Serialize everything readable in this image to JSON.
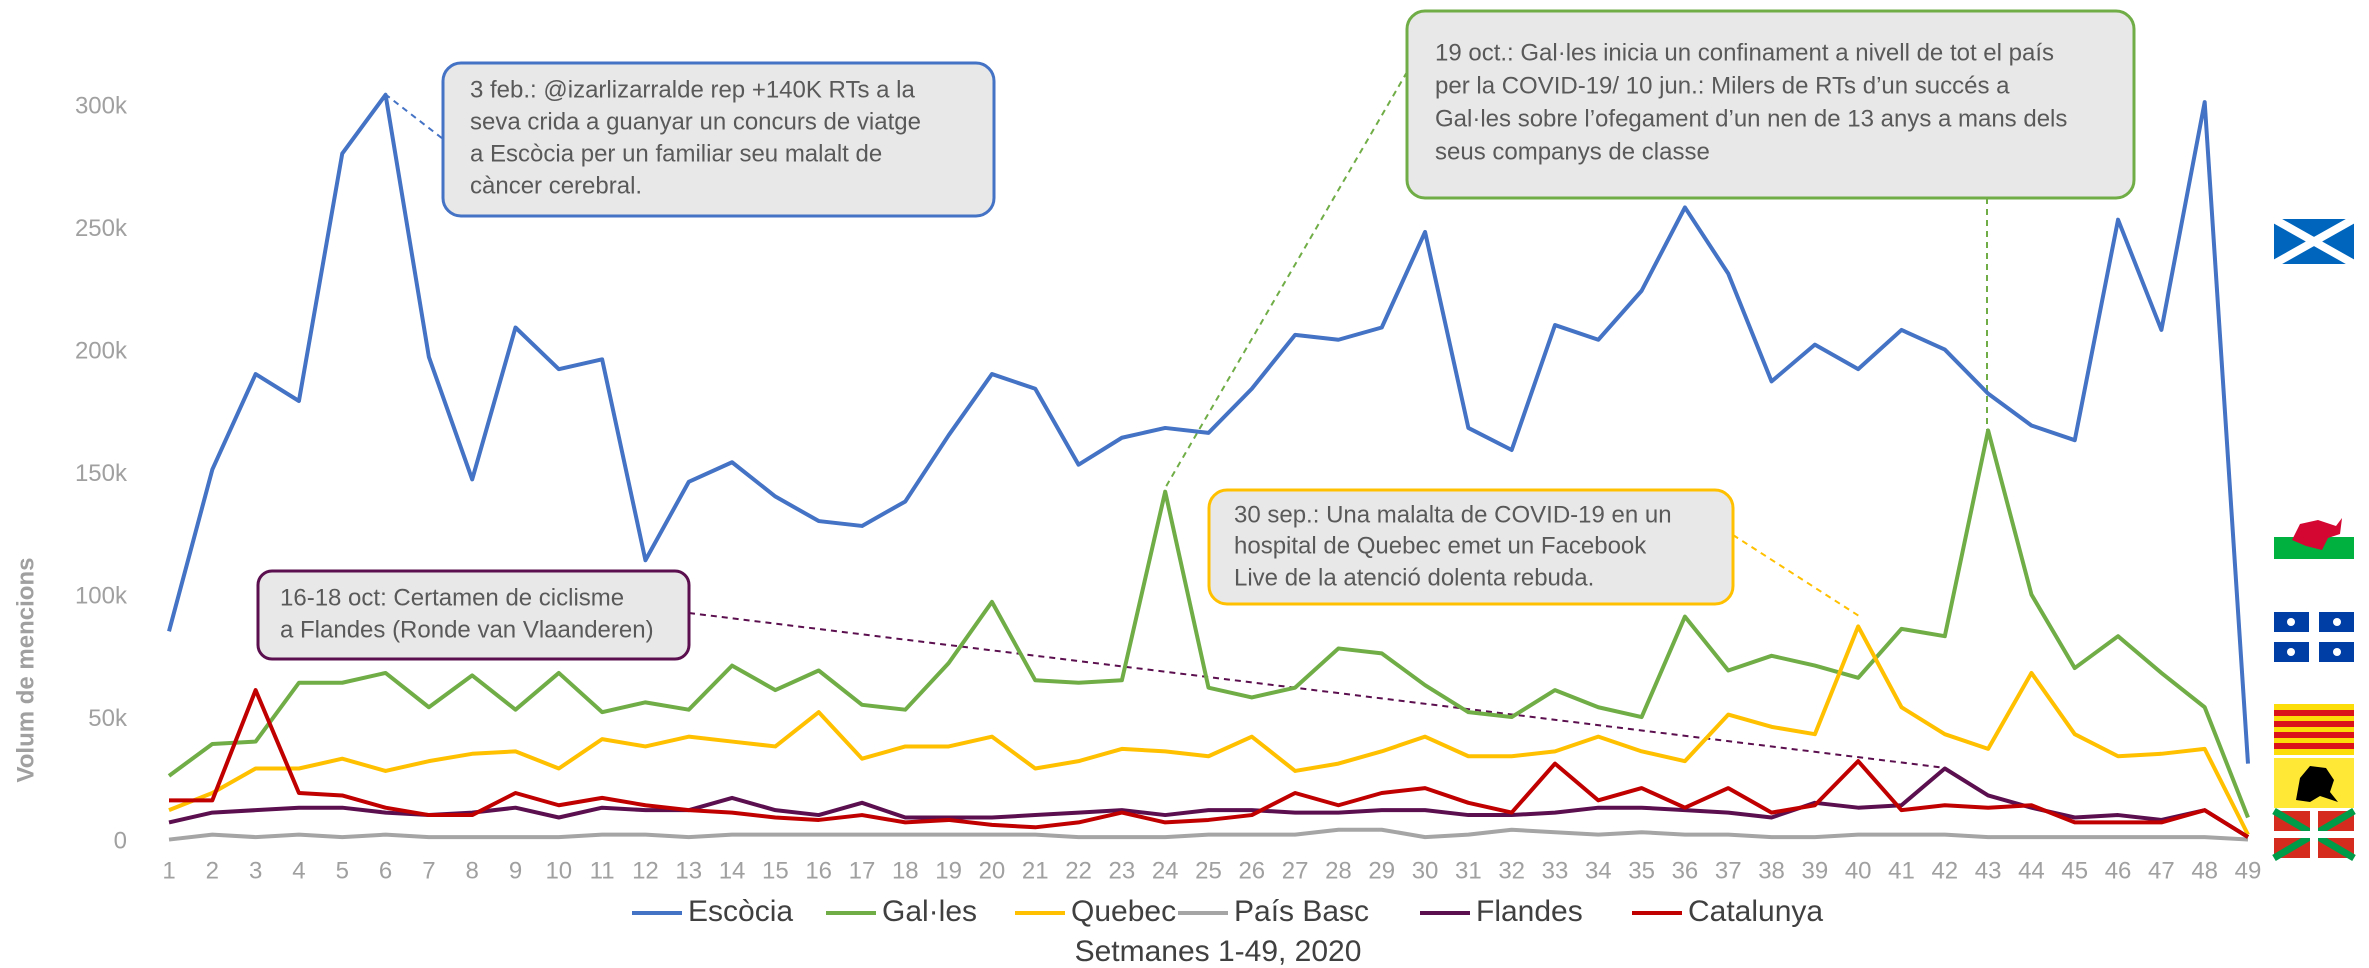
{
  "chart_data": {
    "type": "line",
    "y_label": "Volum de mencions",
    "x_label": "Setmanes 1-49, 2020",
    "x": [
      1,
      2,
      3,
      4,
      5,
      6,
      7,
      8,
      9,
      10,
      11,
      12,
      13,
      14,
      15,
      16,
      17,
      18,
      19,
      20,
      21,
      22,
      23,
      24,
      25,
      26,
      27,
      28,
      29,
      30,
      31,
      32,
      33,
      34,
      35,
      36,
      37,
      38,
      39,
      40,
      41,
      42,
      43,
      44,
      45,
      46,
      47,
      48,
      49
    ],
    "xlim": [
      1,
      49
    ],
    "ylim": [
      0,
      300000
    ],
    "yticks": [
      0,
      {
        "value": 50000,
        "label": "50k"
      },
      {
        "value": 100000,
        "label": "100k"
      },
      {
        "value": 150000,
        "label": "150k"
      },
      {
        "value": 200000,
        "label": "200k"
      },
      {
        "value": 250000,
        "label": "250k"
      },
      {
        "value": 300000,
        "label": "300k"
      }
    ],
    "grid": false,
    "legend": "bottom",
    "series": [
      {
        "name": "Escòcia",
        "color": "#4472c4",
        "values": [
          86000,
          152000,
          191000,
          180000,
          281000,
          305000,
          198000,
          148000,
          210000,
          193000,
          197000,
          115000,
          147000,
          155000,
          141000,
          131000,
          129000,
          139000,
          166000,
          191000,
          185000,
          154000,
          165000,
          169000,
          167000,
          185000,
          207000,
          205000,
          210000,
          249000,
          169000,
          160000,
          211000,
          205000,
          225000,
          259000,
          232000,
          188000,
          203000,
          193000,
          209000,
          201000,
          183000,
          170000,
          164000,
          254000,
          209000,
          302000,
          32000
        ]
      },
      {
        "name": "Gal·les",
        "color": "#70ad47",
        "values": [
          27000,
          40000,
          41000,
          65000,
          65000,
          69000,
          55000,
          68000,
          54000,
          69000,
          53000,
          57000,
          54000,
          72000,
          62000,
          70000,
          56000,
          54000,
          73000,
          98000,
          66000,
          65000,
          66000,
          143000,
          63000,
          59000,
          63000,
          79000,
          77000,
          64000,
          53000,
          51000,
          62000,
          55000,
          51000,
          92000,
          70000,
          76000,
          72000,
          67000,
          87000,
          84000,
          168000,
          101000,
          71000,
          84000,
          69000,
          55000,
          10000
        ]
      },
      {
        "name": "Quebec",
        "color": "#ffc000",
        "values": [
          13000,
          20000,
          30000,
          30000,
          34000,
          29000,
          33000,
          36000,
          37000,
          30000,
          42000,
          39000,
          43000,
          41000,
          39000,
          53000,
          34000,
          39000,
          39000,
          43000,
          30000,
          33000,
          38000,
          37000,
          35000,
          43000,
          29000,
          32000,
          37000,
          43000,
          35000,
          35000,
          37000,
          43000,
          37000,
          33000,
          52000,
          47000,
          44000,
          88000,
          55000,
          44000,
          38000,
          69000,
          44000,
          35000,
          36000,
          38000,
          3000
        ]
      },
      {
        "name": "País Basc",
        "color": "#a5a5a5",
        "values": [
          1000,
          3000,
          2000,
          3000,
          2000,
          3000,
          2000,
          2000,
          2000,
          2000,
          3000,
          3000,
          2000,
          3000,
          3000,
          3000,
          3000,
          3000,
          3000,
          3000,
          3000,
          2000,
          2000,
          2000,
          3000,
          3000,
          3000,
          5000,
          5000,
          2000,
          3000,
          5000,
          4000,
          3000,
          4000,
          3000,
          3000,
          2000,
          2000,
          3000,
          3000,
          3000,
          2000,
          2000,
          2000,
          2000,
          2000,
          2000,
          1000
        ]
      },
      {
        "name": "Flandes",
        "color": "#5b0f4e",
        "values": [
          8000,
          12000,
          13000,
          14000,
          14000,
          12000,
          11000,
          12000,
          14000,
          10000,
          14000,
          13000,
          13000,
          18000,
          13000,
          11000,
          16000,
          10000,
          10000,
          10000,
          11000,
          12000,
          13000,
          11000,
          13000,
          13000,
          12000,
          12000,
          13000,
          13000,
          11000,
          11000,
          12000,
          14000,
          14000,
          13000,
          12000,
          10000,
          16000,
          14000,
          15000,
          30000,
          19000,
          14000,
          10000,
          11000,
          9000,
          13000,
          2000
        ]
      },
      {
        "name": "Catalunya",
        "color": "#c00000",
        "values": [
          17000,
          17000,
          62000,
          20000,
          19000,
          14000,
          11000,
          11000,
          20000,
          15000,
          18000,
          15000,
          13000,
          12000,
          10000,
          9000,
          11000,
          8000,
          9000,
          7000,
          6000,
          8000,
          12000,
          8000,
          9000,
          11000,
          20000,
          15000,
          20000,
          22000,
          16000,
          12000,
          32000,
          17000,
          22000,
          14000,
          22000,
          12000,
          15000,
          33000,
          13000,
          15000,
          14000,
          15000,
          8000,
          8000,
          8000,
          13000,
          2000
        ]
      }
    ],
    "annotations": [
      {
        "lines": [
          "3 feb.: @izarlizarralde rep +140K RTs a la",
          "seva crida a guanyar un concurs de viatge",
          "a Escòcia per un familiar seu malalt de",
          "càncer cerebral."
        ]
      },
      {
        "lines": [
          "19 oct.: Gal·les inicia un confinament a nivell de tot el país",
          "per la COVID-19/ 10 jun.: Milers de RTs d’un succés a",
          "Gal·les sobre l’ofegament d’un nen de 13 anys a mans dels",
          "seus companys de classe"
        ]
      },
      {
        "lines": [
          "30 sep.: Una malalta de COVID-19 en un",
          "hospital de Quebec emet un Facebook",
          "Live de la atenció dolenta rebuda."
        ]
      },
      {
        "lines": [
          "16-18 oct: Certamen de ciclisme",
          "a Flandes (Ronde van Vlaanderen)"
        ]
      }
    ]
  }
}
